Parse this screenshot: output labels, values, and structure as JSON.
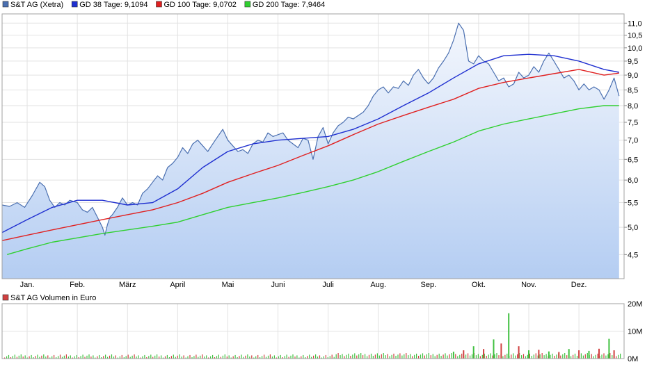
{
  "chart_data": [
    {
      "type": "line",
      "title": "",
      "xlabel": "",
      "ylabel": "",
      "legend": [
        {
          "name": "S&T AG (Xetra)",
          "color": "#4a6fb0"
        },
        {
          "name": "GD 38 Tage: 9,1094",
          "color": "#1f2fd0"
        },
        {
          "name": "GD 100 Tage: 9,0702",
          "color": "#e02020"
        },
        {
          "name": "GD 200 Tage: 7,9464",
          "color": "#30d030"
        }
      ],
      "x_tick_labels": [
        "Jan.",
        "Feb.",
        "März",
        "April",
        "Mai",
        "Juni",
        "Juli",
        "Aug.",
        "Sep.",
        "Okt.",
        "Nov.",
        "Dez."
      ],
      "y_tick_labels": [
        "4,5",
        "5,0",
        "5,5",
        "6,0",
        "6,5",
        "7,0",
        "7,5",
        "8,0",
        "8,5",
        "9,0",
        "9,5",
        "10,0",
        "10,5",
        "11,0"
      ],
      "y_ticks": [
        4.5,
        5.0,
        5.5,
        6.0,
        6.5,
        7.0,
        7.5,
        8.0,
        8.5,
        9.0,
        9.5,
        10.0,
        10.5,
        11.0
      ],
      "y_scale": "log",
      "ylim": [
        4.1,
        11.4
      ],
      "xlim": [
        0,
        12.4
      ],
      "x_ticks": [
        0.5,
        1.5,
        2.5,
        3.5,
        4.5,
        5.5,
        6.5,
        7.5,
        8.5,
        9.5,
        10.5,
        11.5
      ],
      "grid": true,
      "legend_position": "top-left",
      "series": [
        {
          "name": "S&T AG (Xetra)",
          "color": "#4a6fb0",
          "fill": true,
          "x": [
            0.0,
            0.15,
            0.3,
            0.45,
            0.6,
            0.75,
            0.85,
            0.95,
            1.05,
            1.15,
            1.25,
            1.35,
            1.5,
            1.6,
            1.7,
            1.8,
            1.9,
            2.0,
            2.05,
            2.1,
            2.15,
            2.2,
            2.3,
            2.4,
            2.5,
            2.6,
            2.7,
            2.8,
            2.9,
            3.0,
            3.1,
            3.2,
            3.3,
            3.4,
            3.5,
            3.6,
            3.7,
            3.8,
            3.9,
            4.0,
            4.1,
            4.2,
            4.3,
            4.4,
            4.5,
            4.6,
            4.7,
            4.8,
            4.9,
            5.0,
            5.1,
            5.2,
            5.3,
            5.4,
            5.5,
            5.6,
            5.7,
            5.8,
            5.9,
            6.0,
            6.1,
            6.2,
            6.3,
            6.4,
            6.5,
            6.6,
            6.7,
            6.8,
            6.9,
            7.0,
            7.1,
            7.2,
            7.3,
            7.4,
            7.5,
            7.6,
            7.7,
            7.8,
            7.9,
            8.0,
            8.1,
            8.2,
            8.3,
            8.4,
            8.5,
            8.6,
            8.7,
            8.8,
            8.9,
            9.0,
            9.1,
            9.2,
            9.3,
            9.4,
            9.5,
            9.6,
            9.7,
            9.8,
            9.9,
            10.0,
            10.1,
            10.2,
            10.3,
            10.4,
            10.5,
            10.6,
            10.7,
            10.8,
            10.9,
            11.0,
            11.1,
            11.2,
            11.3,
            11.4,
            11.5,
            11.6,
            11.7,
            11.8,
            11.9,
            12.0,
            12.1,
            12.2,
            12.3
          ],
          "values": [
            5.45,
            5.42,
            5.5,
            5.4,
            5.65,
            5.95,
            5.85,
            5.55,
            5.4,
            5.5,
            5.45,
            5.55,
            5.5,
            5.35,
            5.3,
            5.4,
            5.2,
            5.0,
            4.85,
            5.05,
            5.2,
            5.25,
            5.4,
            5.6,
            5.45,
            5.5,
            5.45,
            5.7,
            5.8,
            5.95,
            6.1,
            6.0,
            6.3,
            6.4,
            6.55,
            6.8,
            6.65,
            6.9,
            7.0,
            6.85,
            6.7,
            6.9,
            7.1,
            7.3,
            7.0,
            6.85,
            6.7,
            6.75,
            6.65,
            6.9,
            7.0,
            6.95,
            7.2,
            7.1,
            7.15,
            7.2,
            7.0,
            6.9,
            6.8,
            7.05,
            7.0,
            6.5,
            7.1,
            7.35,
            6.9,
            7.2,
            7.4,
            7.5,
            7.65,
            7.6,
            7.7,
            7.8,
            8.0,
            8.3,
            8.5,
            8.6,
            8.4,
            8.6,
            8.55,
            8.8,
            8.65,
            9.0,
            9.2,
            8.9,
            8.7,
            8.9,
            9.25,
            9.5,
            9.8,
            10.3,
            11.0,
            10.7,
            9.5,
            9.4,
            9.7,
            9.5,
            9.4,
            9.1,
            8.8,
            8.9,
            8.6,
            8.7,
            9.1,
            8.9,
            9.0,
            9.3,
            9.1,
            9.5,
            9.8,
            9.5,
            9.2,
            8.9,
            9.0,
            8.8,
            8.5,
            8.7,
            8.5,
            8.6,
            8.5,
            8.2,
            8.5,
            8.9,
            8.3
          ]
        },
        {
          "name": "GD 38 Tage: 9,1094",
          "color": "#1f2fd0",
          "x": [
            0.0,
            0.5,
            1.0,
            1.5,
            2.0,
            2.5,
            3.0,
            3.5,
            4.0,
            4.5,
            5.0,
            5.5,
            6.0,
            6.5,
            7.0,
            7.5,
            8.0,
            8.5,
            9.0,
            9.5,
            10.0,
            10.5,
            11.0,
            11.5,
            12.0,
            12.3
          ],
          "values": [
            4.9,
            5.15,
            5.4,
            5.55,
            5.55,
            5.45,
            5.5,
            5.8,
            6.3,
            6.7,
            6.9,
            7.0,
            7.05,
            7.1,
            7.3,
            7.6,
            8.0,
            8.4,
            8.9,
            9.4,
            9.7,
            9.75,
            9.7,
            9.5,
            9.2,
            9.1
          ]
        },
        {
          "name": "GD 100 Tage: 9,0702",
          "color": "#e02020",
          "x": [
            0.0,
            0.5,
            1.0,
            1.5,
            2.0,
            2.5,
            3.0,
            3.5,
            4.0,
            4.5,
            5.0,
            5.5,
            6.0,
            6.5,
            7.0,
            7.5,
            8.0,
            8.5,
            9.0,
            9.5,
            10.0,
            10.5,
            11.0,
            11.5,
            12.0,
            12.3
          ],
          "values": [
            4.75,
            4.85,
            4.95,
            5.05,
            5.15,
            5.25,
            5.35,
            5.5,
            5.7,
            5.95,
            6.15,
            6.35,
            6.6,
            6.85,
            7.15,
            7.45,
            7.7,
            7.95,
            8.2,
            8.55,
            8.75,
            8.9,
            9.05,
            9.2,
            9.0,
            9.07
          ]
        },
        {
          "name": "GD 200 Tage: 7,9464",
          "color": "#30d030",
          "x": [
            0.1,
            0.5,
            1.0,
            1.5,
            2.0,
            2.5,
            3.0,
            3.5,
            4.0,
            4.5,
            5.0,
            5.5,
            6.0,
            6.5,
            7.0,
            7.5,
            8.0,
            8.5,
            9.0,
            9.5,
            10.0,
            10.5,
            11.0,
            11.5,
            12.0,
            12.3
          ],
          "values": [
            4.5,
            4.6,
            4.72,
            4.8,
            4.88,
            4.95,
            5.02,
            5.1,
            5.25,
            5.4,
            5.5,
            5.6,
            5.72,
            5.85,
            6.0,
            6.2,
            6.45,
            6.7,
            6.95,
            7.25,
            7.45,
            7.6,
            7.75,
            7.9,
            8.0,
            8.0
          ]
        }
      ]
    },
    {
      "type": "bar",
      "title": "",
      "legend": [
        {
          "name": "S&T AG Volumen in Euro",
          "color": "#d04040"
        }
      ],
      "y_tick_labels": [
        "0M",
        "10M",
        "20M"
      ],
      "y_ticks": [
        0,
        10,
        20
      ],
      "ylim": [
        0,
        20
      ],
      "grid": true,
      "legend_position": "top-left",
      "series": [
        {
          "name": "S&T AG Volumen in Euro",
          "color_positive": "#40c040",
          "color_negative": "#d04040",
          "x": [
            9.0,
            9.2,
            9.4,
            9.6,
            9.8,
            9.95,
            10.1,
            10.3,
            10.5,
            10.7,
            10.9,
            11.1,
            11.3,
            11.5,
            11.7,
            11.9,
            12.1,
            12.2
          ],
          "values": [
            2.5,
            3.0,
            4.5,
            3.5,
            7.0,
            5.5,
            16.5,
            4.5,
            3.0,
            3.2,
            2.6,
            2.4,
            3.5,
            3.0,
            2.8,
            3.6,
            7.2,
            3.0
          ]
        }
      ]
    }
  ]
}
